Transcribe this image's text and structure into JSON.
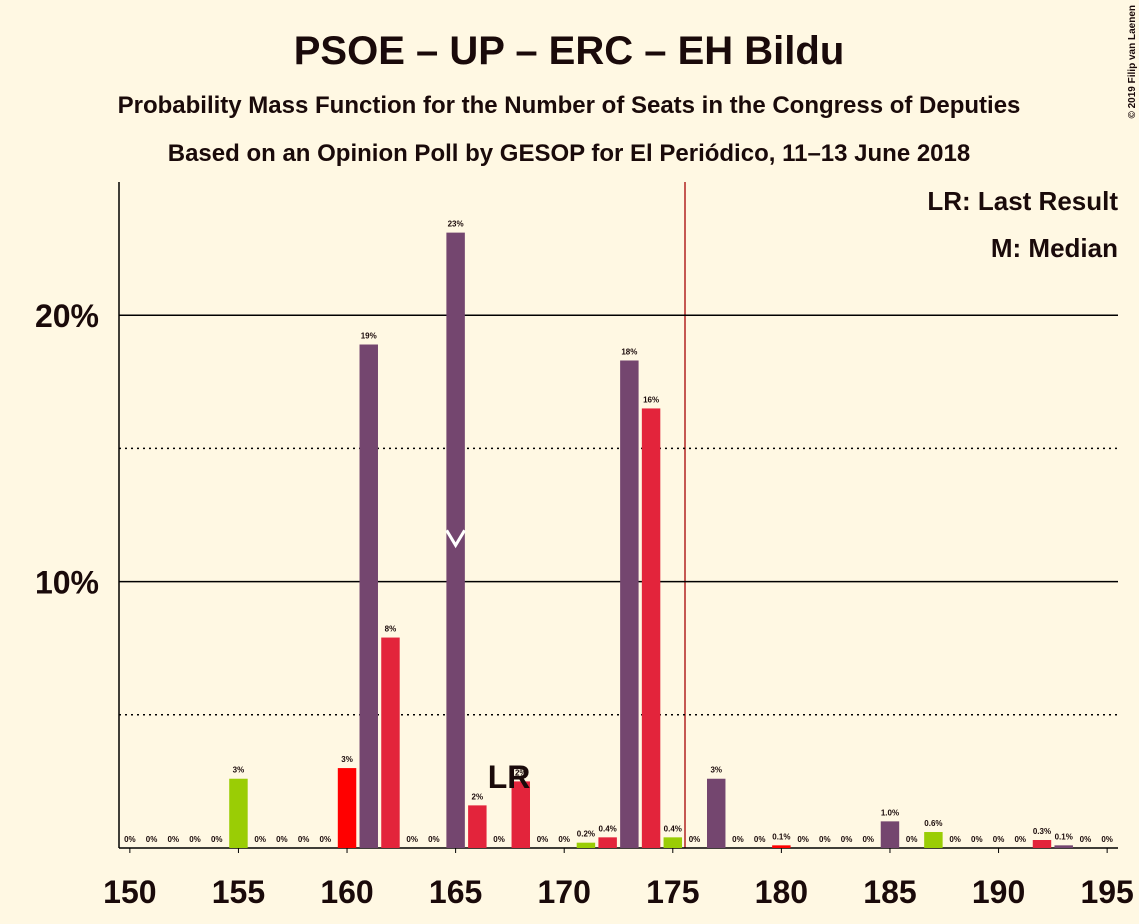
{
  "chart_data": {
    "type": "bar",
    "title": "PSOE – UP – ERC – EH Bildu",
    "subtitle": "Probability Mass Function for the Number of Seats in the Congress of Deputies",
    "subtitle2": "Based on an Opinion Poll by GESOP for El Periódico, 11–13 June 2018",
    "copyright": "© 2019 Filip van Laenen",
    "legend": [
      "LR: Last Result",
      "M: Median"
    ],
    "x": [
      150,
      151,
      152,
      153,
      154,
      155,
      156,
      157,
      158,
      159,
      160,
      161,
      162,
      163,
      164,
      165,
      166,
      167,
      168,
      169,
      170,
      171,
      172,
      173,
      174,
      175,
      176,
      177,
      178,
      179,
      180,
      181,
      182,
      183,
      184,
      185,
      186,
      187,
      188,
      189,
      190,
      191,
      192,
      193,
      194,
      195
    ],
    "values": [
      0,
      0,
      0,
      0,
      0,
      2.6,
      0,
      0,
      0,
      0,
      3,
      18.9,
      7.9,
      0,
      0,
      23.1,
      1.6,
      0,
      2.5,
      0,
      0,
      0.2,
      0.4,
      18.3,
      16.5,
      0.4,
      0,
      2.6,
      0,
      0,
      0.1,
      0,
      0,
      0,
      0,
      1,
      0,
      0.6,
      0,
      0,
      0,
      0,
      0.3,
      0.1,
      0,
      0
    ],
    "value_labels": [
      "0%",
      "0%",
      "0%",
      "0%",
      "0%",
      "3%",
      "0%",
      "0%",
      "0%",
      "0%",
      "3%",
      "19%",
      "8%",
      "0%",
      "0%",
      "23%",
      "2%",
      "0%",
      "2%",
      "0%",
      "0%",
      "0.2%",
      "0.4%",
      "18%",
      "16%",
      "0.4%",
      "0%",
      "3%",
      "0%",
      "0%",
      "0.1%",
      "0%",
      "0%",
      "0%",
      "0%",
      "1.0%",
      "0%",
      "0.6%",
      "0%",
      "0%",
      "0%",
      "0%",
      "0.3%",
      "0.1%",
      "0%",
      "0%"
    ],
    "colors": [
      "#74466F",
      "#74466F",
      "#74466F",
      "#74466F",
      "#74466F",
      "#9ACD05",
      "#74466F",
      "#74466F",
      "#74466F",
      "#74466F",
      "#FF0000",
      "#74466F",
      "#E3243B",
      "#74466F",
      "#74466F",
      "#74466F",
      "#E3243B",
      "#74466F",
      "#E3243B",
      "#74466F",
      "#74466F",
      "#9ACD05",
      "#E3243B",
      "#74466F",
      "#E3243B",
      "#9ACD05",
      "#74466F",
      "#74466F",
      "#74466F",
      "#74466F",
      "#FF0000",
      "#74466F",
      "#74466F",
      "#74466F",
      "#74466F",
      "#74466F",
      "#74466F",
      "#9ACD05",
      "#74466F",
      "#74466F",
      "#74466F",
      "#74466F",
      "#E3243B",
      "#74466F",
      "#74466F",
      "#74466F"
    ],
    "last_result": {
      "label": "LR",
      "x": 167
    },
    "median": 165,
    "xlim": [
      149.5,
      195.5
    ],
    "ylim": [
      0,
      25
    ],
    "xticks": [
      150,
      155,
      160,
      165,
      170,
      175,
      180,
      185,
      190,
      195
    ],
    "yticks": [
      {
        "value": 10,
        "label": "10%"
      },
      {
        "value": 20,
        "label": "20%"
      }
    ],
    "minor_yticks": [
      5,
      15
    ]
  }
}
